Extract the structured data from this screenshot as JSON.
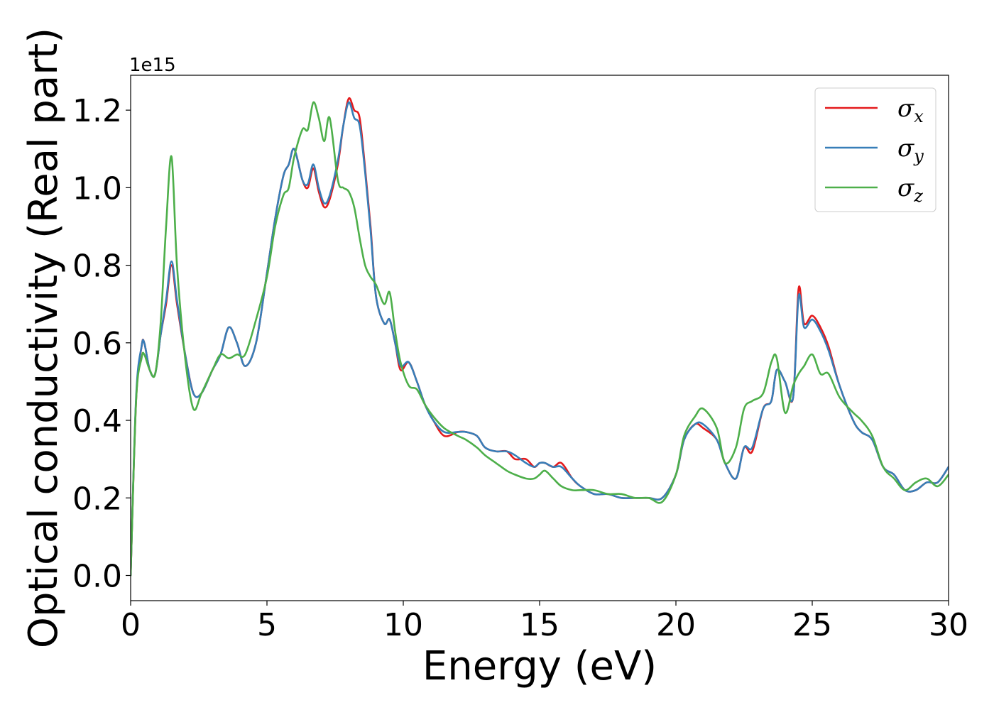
{
  "chart_data": {
    "type": "line",
    "title": "",
    "xlabel": "Energy (eV)",
    "ylabel": "Optical conductivity (Real part)",
    "y_offset_text": "1e15",
    "xlim": [
      0,
      30
    ],
    "ylim": [
      -0.065,
      1.29
    ],
    "xticks": [
      0,
      5,
      10,
      15,
      20,
      25,
      30
    ],
    "xtick_labels": [
      "0",
      "5",
      "10",
      "15",
      "20",
      "25",
      "30"
    ],
    "yticks": [
      0.0,
      0.2,
      0.4,
      0.6,
      0.8,
      1.0,
      1.2
    ],
    "ytick_labels": [
      "0.0",
      "0.2",
      "0.4",
      "0.6",
      "0.8",
      "1.0",
      "1.2"
    ],
    "grid": false,
    "legend_position": "top-right",
    "series": [
      {
        "name": "σx",
        "symbol": "σ",
        "subscript": "x",
        "color": "#e41a1c",
        "x": [
          0,
          0.2,
          0.4,
          0.5,
          0.7,
          0.9,
          1.1,
          1.3,
          1.5,
          1.7,
          2.0,
          2.3,
          2.6,
          3.0,
          3.3,
          3.6,
          3.9,
          4.2,
          4.6,
          5.0,
          5.3,
          5.6,
          5.8,
          6.0,
          6.3,
          6.5,
          6.7,
          6.9,
          7.1,
          7.3,
          7.6,
          7.8,
          8.0,
          8.2,
          8.4,
          8.6,
          8.8,
          9.0,
          9.3,
          9.5,
          9.7,
          9.9,
          10.2,
          10.5,
          10.8,
          11.1,
          11.5,
          12.0,
          12.3,
          12.7,
          13.0,
          13.4,
          13.8,
          14.1,
          14.5,
          14.8,
          15.0,
          15.2,
          15.5,
          15.8,
          16.2,
          16.5,
          17.0,
          17.5,
          18.0,
          18.5,
          19.0,
          19.5,
          20.0,
          20.3,
          20.7,
          21.0,
          21.5,
          21.8,
          22.2,
          22.5,
          22.8,
          23.2,
          23.5,
          23.7,
          24.0,
          24.3,
          24.5,
          24.7,
          25.0,
          25.3,
          25.6,
          26.0,
          26.5,
          26.8,
          27.2,
          27.6,
          28.0,
          28.4,
          28.8,
          29.2,
          29.6,
          30.0
        ],
        "y": [
          0,
          0.45,
          0.59,
          0.6,
          0.53,
          0.52,
          0.62,
          0.7,
          0.8,
          0.7,
          0.57,
          0.47,
          0.47,
          0.53,
          0.57,
          0.64,
          0.6,
          0.54,
          0.6,
          0.78,
          0.92,
          1.03,
          1.06,
          1.1,
          1.02,
          1.0,
          1.05,
          0.99,
          0.95,
          0.97,
          1.06,
          1.16,
          1.23,
          1.2,
          1.18,
          1.05,
          0.9,
          0.72,
          0.65,
          0.66,
          0.6,
          0.53,
          0.55,
          0.5,
          0.44,
          0.4,
          0.36,
          0.37,
          0.37,
          0.36,
          0.33,
          0.32,
          0.32,
          0.3,
          0.3,
          0.28,
          0.29,
          0.29,
          0.28,
          0.29,
          0.25,
          0.23,
          0.21,
          0.21,
          0.2,
          0.2,
          0.2,
          0.2,
          0.26,
          0.35,
          0.39,
          0.38,
          0.35,
          0.29,
          0.25,
          0.33,
          0.32,
          0.43,
          0.45,
          0.53,
          0.5,
          0.46,
          0.74,
          0.65,
          0.67,
          0.64,
          0.59,
          0.49,
          0.4,
          0.37,
          0.35,
          0.28,
          0.26,
          0.22,
          0.22,
          0.24,
          0.24,
          0.28
        ]
      },
      {
        "name": "σy",
        "symbol": "σ",
        "subscript": "y",
        "color": "#377eb8",
        "x": [
          0,
          0.2,
          0.4,
          0.5,
          0.7,
          0.9,
          1.1,
          1.3,
          1.5,
          1.7,
          2.0,
          2.3,
          2.6,
          3.0,
          3.3,
          3.6,
          3.9,
          4.2,
          4.6,
          5.0,
          5.3,
          5.6,
          5.8,
          6.0,
          6.3,
          6.5,
          6.7,
          6.9,
          7.1,
          7.3,
          7.6,
          7.8,
          8.0,
          8.2,
          8.4,
          8.6,
          8.8,
          9.0,
          9.3,
          9.5,
          9.7,
          9.9,
          10.2,
          10.5,
          10.8,
          11.1,
          11.5,
          12.0,
          12.3,
          12.7,
          13.0,
          13.4,
          13.8,
          14.1,
          14.5,
          14.8,
          15.0,
          15.2,
          15.5,
          15.8,
          16.2,
          16.5,
          17.0,
          17.5,
          18.0,
          18.5,
          19.0,
          19.5,
          20.0,
          20.3,
          20.7,
          21.0,
          21.5,
          21.8,
          22.2,
          22.5,
          22.8,
          23.2,
          23.5,
          23.7,
          24.0,
          24.3,
          24.5,
          24.7,
          25.0,
          25.3,
          25.6,
          26.0,
          26.5,
          26.8,
          27.2,
          27.6,
          28.0,
          28.4,
          28.8,
          29.2,
          29.6,
          30.0
        ],
        "y": [
          0,
          0.46,
          0.59,
          0.6,
          0.53,
          0.52,
          0.62,
          0.71,
          0.81,
          0.71,
          0.57,
          0.47,
          0.47,
          0.53,
          0.57,
          0.64,
          0.6,
          0.54,
          0.6,
          0.78,
          0.92,
          1.03,
          1.06,
          1.1,
          1.02,
          1.01,
          1.06,
          1.0,
          0.96,
          0.98,
          1.07,
          1.16,
          1.22,
          1.18,
          1.16,
          1.04,
          0.89,
          0.72,
          0.65,
          0.66,
          0.6,
          0.54,
          0.55,
          0.5,
          0.44,
          0.4,
          0.37,
          0.37,
          0.37,
          0.36,
          0.33,
          0.32,
          0.32,
          0.31,
          0.29,
          0.28,
          0.29,
          0.29,
          0.28,
          0.28,
          0.25,
          0.23,
          0.21,
          0.21,
          0.2,
          0.2,
          0.2,
          0.2,
          0.26,
          0.35,
          0.39,
          0.39,
          0.35,
          0.29,
          0.25,
          0.33,
          0.33,
          0.43,
          0.45,
          0.53,
          0.5,
          0.46,
          0.72,
          0.64,
          0.66,
          0.63,
          0.58,
          0.49,
          0.4,
          0.37,
          0.35,
          0.28,
          0.26,
          0.22,
          0.22,
          0.24,
          0.24,
          0.28
        ]
      },
      {
        "name": "σz",
        "symbol": "σ",
        "subscript": "z",
        "color": "#4daf4a",
        "x": [
          0,
          0.2,
          0.4,
          0.5,
          0.7,
          0.9,
          1.1,
          1.3,
          1.5,
          1.7,
          2.0,
          2.3,
          2.6,
          3.0,
          3.3,
          3.6,
          3.9,
          4.2,
          4.6,
          5.0,
          5.3,
          5.6,
          5.8,
          6.0,
          6.3,
          6.5,
          6.7,
          6.9,
          7.1,
          7.3,
          7.6,
          7.8,
          8.0,
          8.2,
          8.4,
          8.6,
          8.8,
          9.0,
          9.3,
          9.5,
          9.7,
          9.9,
          10.2,
          10.5,
          10.8,
          11.1,
          11.5,
          12.0,
          12.3,
          12.7,
          13.0,
          13.4,
          13.8,
          14.1,
          14.5,
          14.8,
          15.0,
          15.2,
          15.5,
          15.8,
          16.2,
          16.5,
          17.0,
          17.5,
          18.0,
          18.5,
          19.0,
          19.5,
          20.0,
          20.3,
          20.7,
          21.0,
          21.5,
          21.8,
          22.2,
          22.5,
          22.8,
          23.2,
          23.5,
          23.7,
          24.0,
          24.3,
          24.5,
          24.7,
          25.0,
          25.3,
          25.6,
          26.0,
          26.5,
          26.8,
          27.2,
          27.6,
          28.0,
          28.4,
          28.8,
          29.2,
          29.6,
          30.0
        ],
        "y": [
          0,
          0.45,
          0.56,
          0.57,
          0.53,
          0.52,
          0.65,
          0.9,
          1.08,
          0.8,
          0.56,
          0.43,
          0.47,
          0.53,
          0.57,
          0.56,
          0.57,
          0.57,
          0.66,
          0.77,
          0.9,
          0.98,
          1.0,
          1.08,
          1.15,
          1.15,
          1.22,
          1.18,
          1.12,
          1.18,
          1.02,
          1.0,
          0.99,
          0.95,
          0.87,
          0.8,
          0.77,
          0.75,
          0.7,
          0.73,
          0.63,
          0.55,
          0.49,
          0.48,
          0.44,
          0.41,
          0.38,
          0.36,
          0.35,
          0.33,
          0.31,
          0.29,
          0.27,
          0.26,
          0.25,
          0.25,
          0.26,
          0.27,
          0.25,
          0.23,
          0.22,
          0.22,
          0.22,
          0.21,
          0.21,
          0.2,
          0.2,
          0.19,
          0.26,
          0.36,
          0.41,
          0.43,
          0.38,
          0.29,
          0.33,
          0.43,
          0.45,
          0.47,
          0.55,
          0.56,
          0.42,
          0.49,
          0.52,
          0.54,
          0.57,
          0.52,
          0.52,
          0.46,
          0.42,
          0.4,
          0.36,
          0.28,
          0.25,
          0.22,
          0.24,
          0.25,
          0.23,
          0.26
        ]
      }
    ]
  }
}
